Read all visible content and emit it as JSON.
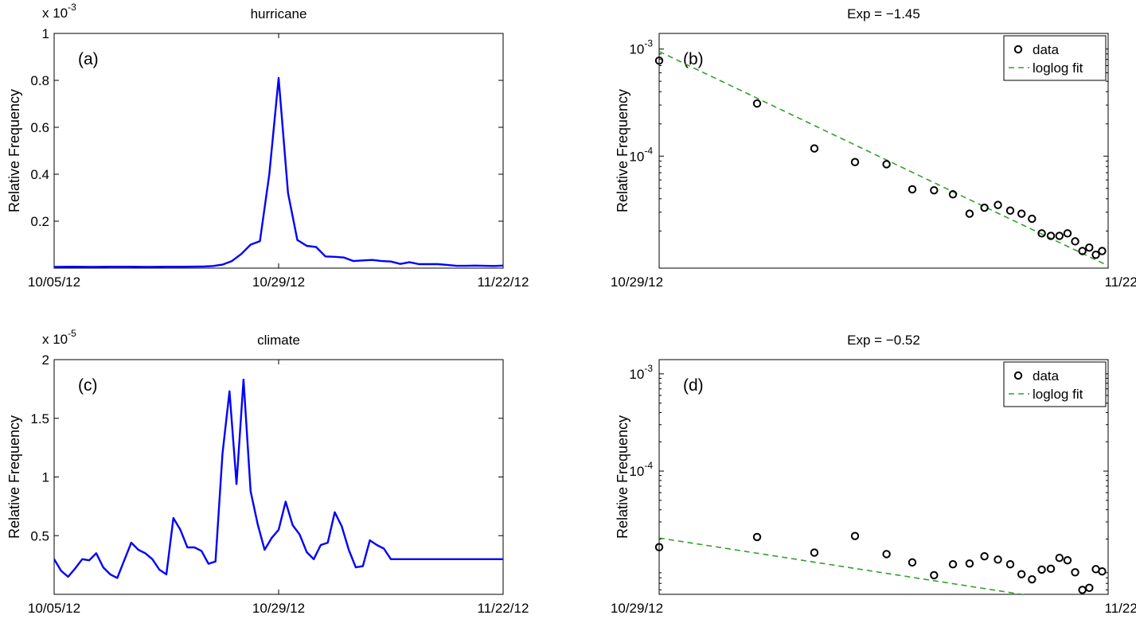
{
  "chart_data": [
    {
      "type": "line",
      "title": "hurricane",
      "panel_label": "(a)",
      "ylabel": "Relative Frequency",
      "y_multiplier": "x 10",
      "y_multiplier_exp": "-3",
      "x_tick_labels": [
        "10/05/12",
        "10/29/12",
        "11/22/12"
      ],
      "xlim": [
        0,
        48
      ],
      "x_tick_positions": [
        0,
        24,
        48
      ],
      "ylim": [
        0,
        1.0
      ],
      "y_ticks": [
        0.2,
        0.4,
        0.6,
        0.8,
        1
      ],
      "y_tick_labels": [
        "0.2",
        "0.4",
        "0.6",
        "0.8",
        "1"
      ],
      "color": "#0000ff",
      "series": [
        {
          "x": [
            0,
            2,
            4,
            6,
            8,
            10,
            12,
            14,
            16,
            17,
            18,
            19,
            20,
            21,
            22,
            23,
            24,
            25,
            26,
            27,
            28,
            29,
            30,
            31,
            32,
            33,
            34,
            35,
            36,
            37,
            38,
            39,
            40,
            41,
            42,
            43,
            44,
            45,
            46,
            47,
            48
          ],
          "values": [
            0.005,
            0.006,
            0.005,
            0.006,
            0.006,
            0.005,
            0.006,
            0.006,
            0.007,
            0.009,
            0.015,
            0.03,
            0.06,
            0.1,
            0.115,
            0.4,
            0.81,
            0.32,
            0.12,
            0.095,
            0.09,
            0.05,
            0.048,
            0.045,
            0.03,
            0.033,
            0.035,
            0.03,
            0.028,
            0.018,
            0.025,
            0.017,
            0.017,
            0.017,
            0.014,
            0.01,
            0.01,
            0.011,
            0.01,
            0.009,
            0.011
          ]
        }
      ]
    },
    {
      "type": "scatter",
      "title": "Exp = −1.45",
      "panel_label": "(b)",
      "ylabel": "Relative Frequency",
      "x_tick_labels": [
        "10/29/12",
        "11/22/12"
      ],
      "xlim": [
        1,
        24
      ],
      "x_scale": "log",
      "y_scale": "log",
      "ylim": [
        9e-06,
        0.0014
      ],
      "y_ticks": [
        0.0001,
        0.001
      ],
      "y_tick_base": "10",
      "y_tick_exps": [
        "-4",
        "-3"
      ],
      "legend": [
        "data",
        "loglog fit"
      ],
      "legend_placement": "top-right",
      "fit_color": "#33a02c",
      "fit": {
        "exponent": -1.45,
        "coef": 0.00095
      },
      "series": [
        {
          "name": "data",
          "x": [
            1,
            2,
            3,
            4,
            5,
            6,
            7,
            8,
            9,
            10,
            11,
            12,
            13,
            14,
            15,
            16,
            17,
            18,
            19,
            20,
            21,
            22,
            23
          ],
          "values": [
            0.00078,
            0.00031,
            0.000118,
            8.8e-05,
            8.4e-05,
            4.9e-05,
            4.8e-05,
            4.4e-05,
            2.9e-05,
            3.3e-05,
            3.5e-05,
            3.1e-05,
            2.9e-05,
            2.6e-05,
            1.9e-05,
            1.8e-05,
            1.8e-05,
            1.9e-05,
            1.6e-05,
            1.3e-05,
            1.4e-05,
            1.2e-05,
            1.3e-05
          ]
        }
      ]
    },
    {
      "type": "line",
      "title": "climate",
      "panel_label": "(c)",
      "ylabel": "Relative Frequency",
      "y_multiplier": "x 10",
      "y_multiplier_exp": "-5",
      "x_tick_labels": [
        "10/05/12",
        "10/29/12",
        "11/22/12"
      ],
      "xlim": [
        0,
        48
      ],
      "x_tick_positions": [
        0,
        24,
        48
      ],
      "ylim": [
        0,
        2.0
      ],
      "y_ticks": [
        0.5,
        1,
        1.5,
        2
      ],
      "y_tick_labels": [
        "0.5",
        "1",
        "1.5",
        "2"
      ],
      "color": "#0000ff",
      "series": [
        {
          "x": [
            0,
            0.75,
            1.5,
            2.25,
            3,
            3.75,
            4.5,
            5.25,
            6,
            6.75,
            7.5,
            8.25,
            9,
            9.75,
            10.5,
            11.25,
            12,
            12.75,
            13.5,
            14.25,
            15,
            15.75,
            16.5,
            17.25,
            18,
            18.75,
            19.5,
            20.25,
            21,
            21.75,
            22.5,
            23.25,
            24,
            24.75,
            25.5,
            26.25,
            27,
            27.75,
            28.5,
            29.25,
            30,
            30.75,
            31.5,
            32.25,
            33,
            33.75,
            34.5,
            35.25,
            36,
            36.75,
            37.5,
            38.25,
            39,
            39.75,
            40.5,
            41.25,
            42,
            42.75,
            43.5,
            44.25,
            45,
            45.75,
            46.5,
            47.25,
            48
          ],
          "values": [
            0.3,
            0.2,
            0.15,
            0.22,
            0.3,
            0.29,
            0.35,
            0.23,
            0.17,
            0.14,
            0.29,
            0.44,
            0.38,
            0.35,
            0.3,
            0.21,
            0.17,
            0.65,
            0.55,
            0.4,
            0.4,
            0.37,
            0.26,
            0.28,
            1.2,
            1.73,
            0.94,
            1.83,
            0.88,
            0.6,
            0.38,
            0.48,
            0.55,
            0.79,
            0.59,
            0.51,
            0.36,
            0.3,
            0.42,
            0.44,
            0.7,
            0.58,
            0.38,
            0.23,
            0.24,
            0.46,
            0.42,
            0.39,
            0.3,
            0.3,
            0.3,
            0.3,
            0.3,
            0.3,
            0.3,
            0.3,
            0.3,
            0.3,
            0.3,
            0.3,
            0.3,
            0.3,
            0.3,
            0.3,
            0.3
          ]
        }
      ]
    },
    {
      "type": "scatter",
      "title": "Exp = −0.52",
      "panel_label": "(d)",
      "ylabel": "Relative Frequency",
      "x_tick_labels": [
        "10/29/12",
        "11/22/12"
      ],
      "xlim": [
        1,
        24
      ],
      "x_scale": "log",
      "y_scale": "log",
      "ylim": [
        5.4e-06,
        0.0014
      ],
      "y_ticks": [
        0.0001,
        0.001
      ],
      "y_tick_base": "10",
      "y_tick_exps": [
        "-4",
        "-3"
      ],
      "legend": [
        "data",
        "loglog fit"
      ],
      "legend_placement": "top-right",
      "fit_color": "#33a02c",
      "fit": {
        "exponent": -0.52,
        "coef": 2.05e-05
      },
      "series": [
        {
          "name": "data",
          "x": [
            1,
            2,
            3,
            4,
            5,
            6,
            7,
            8,
            9,
            10,
            11,
            12,
            13,
            14,
            15,
            16,
            17,
            18,
            19,
            20,
            21,
            22,
            23
          ],
          "values": [
            1.65e-05,
            2.1e-05,
            1.45e-05,
            2.15e-05,
            1.4e-05,
            1.15e-05,
            8.5e-06,
            1.1e-05,
            1.12e-05,
            1.33e-05,
            1.23e-05,
            1.1e-05,
            8.7e-06,
            7.7e-06,
            9.7e-06,
            9.9e-06,
            1.28e-05,
            1.21e-05,
            9.1e-06,
            6e-06,
            6.3e-06,
            9.8e-06,
            9.3e-06
          ]
        }
      ]
    }
  ]
}
